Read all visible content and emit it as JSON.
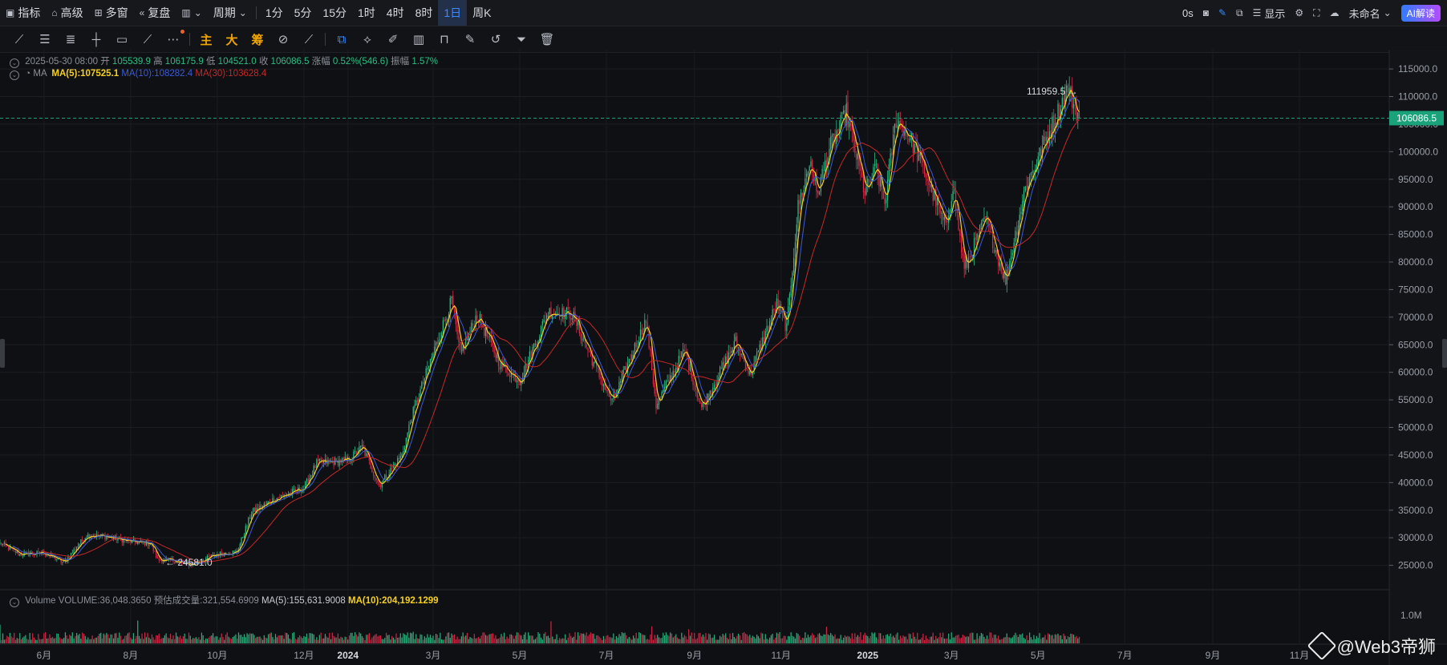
{
  "toolbar": {
    "left_items": [
      {
        "icon": "indicator-icon",
        "label": "指标"
      },
      {
        "icon": "advanced-icon",
        "label": "高级"
      },
      {
        "icon": "multi-window-icon",
        "label": "多窗"
      },
      {
        "icon": "replay-icon",
        "label": "复盘"
      },
      {
        "icon": "candle-type-icon",
        "label": ""
      },
      {
        "icon": "chevron-down-icon",
        "label": "周期"
      }
    ],
    "periods": [
      "1分",
      "5分",
      "15分",
      "1时",
      "4时",
      "8时",
      "1日",
      "周K"
    ],
    "active_period": "1日",
    "right_items": {
      "countdown": "0s",
      "display_label": "显示",
      "account_label": "未命名",
      "ai_label": "AI解读"
    }
  },
  "drawing_tools": {
    "cn_tools": [
      "主",
      "大",
      "筹"
    ]
  },
  "info_bar": {
    "date": "2025-05-30 08:00",
    "open_label": "开",
    "open": "105539.9",
    "high_label": "高",
    "high": "106175.9",
    "low_label": "低",
    "low": "104521.0",
    "close_label": "收",
    "close": "106086.5",
    "change_label": "涨幅",
    "change": "0.52%(546.6)",
    "amplitude_label": "振幅",
    "amplitude": "1.57%"
  },
  "ma_bar": {
    "name": "MA",
    "ma5": "MA(5):107525.1",
    "ma10": "MA(10):108282.4",
    "ma30": "MA(30):103628.4"
  },
  "volume_bar": {
    "name": "Volume",
    "volume": "VOLUME:36,048.3650",
    "est_label": "预估成交量:321,554.6909",
    "ma5": "MA(5):155,631.9008",
    "ma10": "MA(10):204,192.1299"
  },
  "watermark": "@Web3帝狮",
  "colors": {
    "up": "#2ebd85",
    "down": "#e0294a",
    "ma5": "#f5d020",
    "ma10": "#3b5bdb",
    "ma30": "#c62828",
    "last_price_badge": "#1aa37a"
  },
  "chart_data": {
    "type": "candlestick",
    "y_ticks": [
      25000,
      30000,
      35000,
      40000,
      45000,
      50000,
      55000,
      60000,
      65000,
      70000,
      75000,
      80000,
      85000,
      90000,
      95000,
      100000,
      105000,
      110000,
      115000
    ],
    "y_tick_labels": [
      "25000.0",
      "30000.0",
      "35000.0",
      "40000.0",
      "45000.0",
      "50000.0",
      "55000.0",
      "60000.0",
      "65000.0",
      "70000.0",
      "75000.0",
      "80000.0",
      "85000.0",
      "90000.0",
      "95000.0",
      "100000.0",
      "105000.0",
      "110000.0",
      "115000.0"
    ],
    "ylim": [
      20000,
      118500
    ],
    "x_labels": [
      "6月",
      "8月",
      "10月",
      "12月",
      "2024",
      "3月",
      "5月",
      "7月",
      "9月",
      "11月",
      "2025",
      "3月",
      "5月",
      "7月",
      "9月",
      "11月"
    ],
    "x_label_dates": [
      "2023-06-01",
      "2023-08-01",
      "2023-10-01",
      "2023-12-01",
      "2024-01-01",
      "2024-03-01",
      "2024-05-01",
      "2024-07-01",
      "2024-09-01",
      "2024-11-01",
      "2025-01-01",
      "2025-03-01",
      "2025-05-01",
      "2025-07-01",
      "2025-09-01",
      "2025-11-01"
    ],
    "last_price": "106086.5",
    "high_annotation": "111959.5",
    "low_annotation": "24581.0",
    "volume_tick_label": "1.0M",
    "price_path": [
      [
        "2023-05-01",
        29000
      ],
      [
        "2023-05-15",
        27000
      ],
      [
        "2023-06-01",
        27200
      ],
      [
        "2023-06-15",
        25500
      ],
      [
        "2023-07-01",
        30500
      ],
      [
        "2023-07-15",
        30200
      ],
      [
        "2023-08-01",
        29300
      ],
      [
        "2023-08-15",
        29000
      ],
      [
        "2023-08-20",
        26000
      ],
      [
        "2023-09-01",
        25800
      ],
      [
        "2023-09-12",
        25100
      ],
      [
        "2023-10-01",
        27000
      ],
      [
        "2023-10-15",
        27500
      ],
      [
        "2023-10-25",
        34500
      ],
      [
        "2023-11-10",
        37000
      ],
      [
        "2023-12-01",
        39000
      ],
      [
        "2023-12-10",
        43500
      ],
      [
        "2024-01-01",
        44000
      ],
      [
        "2024-01-11",
        46500
      ],
      [
        "2024-01-23",
        39500
      ],
      [
        "2024-02-08",
        45000
      ],
      [
        "2024-02-15",
        52000
      ],
      [
        "2024-02-28",
        62000
      ],
      [
        "2024-03-14",
        73000
      ],
      [
        "2024-03-20",
        63000
      ],
      [
        "2024-04-01",
        70500
      ],
      [
        "2024-04-17",
        61500
      ],
      [
        "2024-05-01",
        58500
      ],
      [
        "2024-05-21",
        71000
      ],
      [
        "2024-06-07",
        70500
      ],
      [
        "2024-06-24",
        60500
      ],
      [
        "2024-07-05",
        54500
      ],
      [
        "2024-07-29",
        69500
      ],
      [
        "2024-08-05",
        54000
      ],
      [
        "2024-08-25",
        64000
      ],
      [
        "2024-09-06",
        53500
      ],
      [
        "2024-09-30",
        65500
      ],
      [
        "2024-10-10",
        59500
      ],
      [
        "2024-10-29",
        72500
      ],
      [
        "2024-11-05",
        68000
      ],
      [
        "2024-11-13",
        90000
      ],
      [
        "2024-11-22",
        98500
      ],
      [
        "2024-11-26",
        92000
      ],
      [
        "2024-12-05",
        100500
      ],
      [
        "2024-12-17",
        107000
      ],
      [
        "2024-12-30",
        92500
      ],
      [
        "2025-01-07",
        97000
      ],
      [
        "2025-01-13",
        90500
      ],
      [
        "2025-01-21",
        106000
      ],
      [
        "2025-01-31",
        102500
      ],
      [
        "2025-02-10",
        96500
      ],
      [
        "2025-02-25",
        86000
      ],
      [
        "2025-03-02",
        94000
      ],
      [
        "2025-03-10",
        78500
      ],
      [
        "2025-03-25",
        88000
      ],
      [
        "2025-04-08",
        76500
      ],
      [
        "2025-04-22",
        93500
      ],
      [
        "2025-05-08",
        103000
      ],
      [
        "2025-05-22",
        111500
      ],
      [
        "2025-05-30",
        106086
      ]
    ]
  }
}
